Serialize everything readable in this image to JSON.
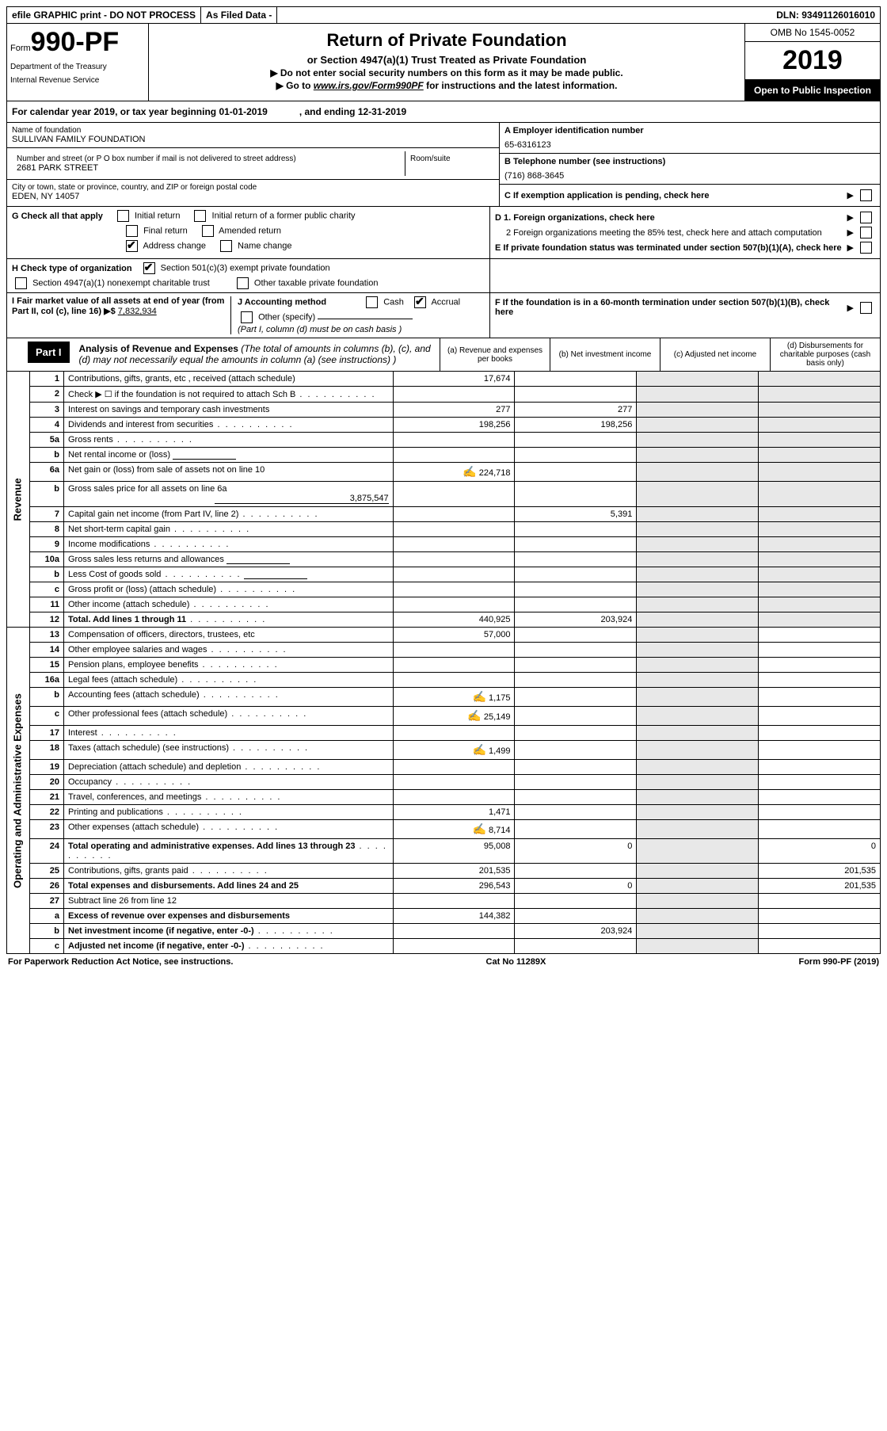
{
  "topbar": {
    "efile": "efile GRAPHIC print - DO NOT PROCESS",
    "asfiled": "As Filed Data -",
    "dln": "DLN: 93491126016010"
  },
  "header": {
    "form_label": "Form",
    "form_number": "990-PF",
    "dept1": "Department of the Treasury",
    "dept2": "Internal Revenue Service",
    "title": "Return of Private Foundation",
    "subtitle": "or Section 4947(a)(1) Trust Treated as Private Foundation",
    "warn1": "▶ Do not enter social security numbers on this form as it may be made public.",
    "warn2_prefix": "▶ Go to ",
    "warn2_link": "www.irs.gov/Form990PF",
    "warn2_suffix": " for instructions and the latest information.",
    "omb": "OMB No  1545-0052",
    "year": "2019",
    "inspect": "Open to Public Inspection"
  },
  "calyear": {
    "label": "For calendar year 2019, or tax year beginning 01-01-2019",
    "ending": ", and ending 12-31-2019"
  },
  "info": {
    "name_label": "Name of foundation",
    "name_value": "SULLIVAN FAMILY FOUNDATION",
    "addr_label": "Number and street (or P O  box number if mail is not delivered to street address)",
    "addr_value": "2681 PARK STREET",
    "room_label": "Room/suite",
    "city_label": "City or town, state or province, country, and ZIP or foreign postal code",
    "city_value": "EDEN, NY  14057",
    "a_label": "A Employer identification number",
    "a_value": "65-6316123",
    "b_label": "B Telephone number (see instructions)",
    "b_value": "(716) 868-3645",
    "c_label": "C  If exemption application is pending, check here"
  },
  "g": {
    "label": "G Check all that apply",
    "opts": [
      "Initial return",
      "Initial return of a former public charity",
      "Final return",
      "Amended return",
      "Address change",
      "Name change"
    ],
    "d1": "D 1. Foreign organizations, check here",
    "d2": "2  Foreign organizations meeting the 85% test, check here and attach computation",
    "e": "E  If private foundation status was terminated under section 507(b)(1)(A), check here"
  },
  "h": {
    "label": "H Check type of organization",
    "opt1": "Section 501(c)(3) exempt private foundation",
    "opt2": "Section 4947(a)(1) nonexempt charitable trust",
    "opt3": "Other taxable private foundation"
  },
  "i": {
    "label1": "I Fair market value of all assets at end of year (from Part II, col  (c), line 16) ▶$ ",
    "value": "7,832,934",
    "j_label": "J Accounting method",
    "j_cash": "Cash",
    "j_accrual": "Accrual",
    "j_other": "Other (specify)",
    "j_note": "(Part I, column (d) must be on cash basis )",
    "f_label": "F  If the foundation is in a 60-month termination under section 507(b)(1)(B), check here"
  },
  "part1": {
    "badge": "Part I",
    "title_bold": "Analysis of Revenue and Expenses",
    "title_rest": " (The total of amounts in columns (b), (c), and (d) may not necessarily equal the amounts in column (a) (see instructions) )",
    "col_a": "(a)  Revenue and expenses per books",
    "col_b": "(b)  Net investment income",
    "col_c": "(c)  Adjusted net income",
    "col_d": "(d)  Disbursements for charitable purposes (cash basis only)"
  },
  "side_labels": {
    "revenue": "Revenue",
    "expenses": "Operating and Administrative Expenses"
  },
  "rows": [
    {
      "n": "1",
      "d": "Contributions, gifts, grants, etc , received (attach schedule)",
      "a": "17,674"
    },
    {
      "n": "2",
      "d": "Check ▶ ☐ if the foundation is not required to attach Sch  B",
      "dots": true
    },
    {
      "n": "3",
      "d": "Interest on savings and temporary cash investments",
      "a": "277",
      "b": "277"
    },
    {
      "n": "4",
      "d": "Dividends and interest from securities",
      "dots": true,
      "a": "198,256",
      "b": "198,256"
    },
    {
      "n": "5a",
      "d": "Gross rents",
      "dots": true
    },
    {
      "n": "b",
      "d": "Net rental income or (loss)",
      "underline_after": true
    },
    {
      "n": "6a",
      "d": "Net gain or (loss) from sale of assets not on line 10",
      "icon": true,
      "a": "224,718"
    },
    {
      "n": "b",
      "d": "Gross sales price for all assets on line 6a",
      "sub_value": "3,875,547"
    },
    {
      "n": "7",
      "d": "Capital gain net income (from Part IV, line 2)",
      "dots": true,
      "b": "5,391"
    },
    {
      "n": "8",
      "d": "Net short-term capital gain",
      "dots": true
    },
    {
      "n": "9",
      "d": "Income modifications",
      "dots": true
    },
    {
      "n": "10a",
      "d": "Gross sales less returns and allowances",
      "underline_after": true
    },
    {
      "n": "b",
      "d": "Less  Cost of goods sold",
      "dots": true,
      "underline_after": true
    },
    {
      "n": "c",
      "d": "Gross profit or (loss) (attach schedule)",
      "dots": true
    },
    {
      "n": "11",
      "d": "Other income (attach schedule)",
      "dots": true
    },
    {
      "n": "12",
      "d": "Total. Add lines 1 through 11",
      "dots": true,
      "bold": true,
      "a": "440,925",
      "b": "203,924"
    },
    {
      "n": "13",
      "d": "Compensation of officers, directors, trustees, etc",
      "a": "57,000"
    },
    {
      "n": "14",
      "d": "Other employee salaries and wages",
      "dots": true
    },
    {
      "n": "15",
      "d": "Pension plans, employee benefits",
      "dots": true
    },
    {
      "n": "16a",
      "d": "Legal fees (attach schedule)",
      "dots": true
    },
    {
      "n": "b",
      "d": "Accounting fees (attach schedule)",
      "dots": true,
      "icon": true,
      "a": "1,175"
    },
    {
      "n": "c",
      "d": "Other professional fees (attach schedule)",
      "dots": true,
      "icon": true,
      "a": "25,149"
    },
    {
      "n": "17",
      "d": "Interest",
      "dots": true
    },
    {
      "n": "18",
      "d": "Taxes (attach schedule) (see instructions)",
      "dots": true,
      "icon": true,
      "a": "1,499"
    },
    {
      "n": "19",
      "d": "Depreciation (attach schedule) and depletion",
      "dots": true
    },
    {
      "n": "20",
      "d": "Occupancy",
      "dots": true
    },
    {
      "n": "21",
      "d": "Travel, conferences, and meetings",
      "dots": true
    },
    {
      "n": "22",
      "d": "Printing and publications",
      "dots": true,
      "a": "1,471"
    },
    {
      "n": "23",
      "d": "Other expenses (attach schedule)",
      "dots": true,
      "icon": true,
      "a": "8,714"
    },
    {
      "n": "24",
      "d": "Total operating and administrative expenses. Add lines 13 through 23",
      "dots": true,
      "bold": true,
      "a": "95,008",
      "b": "0",
      "d_val": "0"
    },
    {
      "n": "25",
      "d": "Contributions, gifts, grants paid",
      "dots": true,
      "a": "201,535",
      "d_val": "201,535"
    },
    {
      "n": "26",
      "d": "Total expenses and disbursements. Add lines 24 and 25",
      "bold": true,
      "a": "296,543",
      "b": "0",
      "d_val": "201,535"
    },
    {
      "n": "27",
      "d": "Subtract line 26 from line 12"
    },
    {
      "n": "a",
      "d": "Excess of revenue over expenses and disbursements",
      "bold": true,
      "a": "144,382"
    },
    {
      "n": "b",
      "d": "Net investment income (if negative, enter -0-)",
      "dots": true,
      "bold": true,
      "b": "203,924"
    },
    {
      "n": "c",
      "d": "Adjusted net income (if negative, enter -0-)",
      "dots": true,
      "bold": true
    }
  ],
  "footer": {
    "left": "For Paperwork Reduction Act Notice, see instructions.",
    "center": "Cat  No  11289X",
    "right": "Form 990-PF (2019)"
  }
}
